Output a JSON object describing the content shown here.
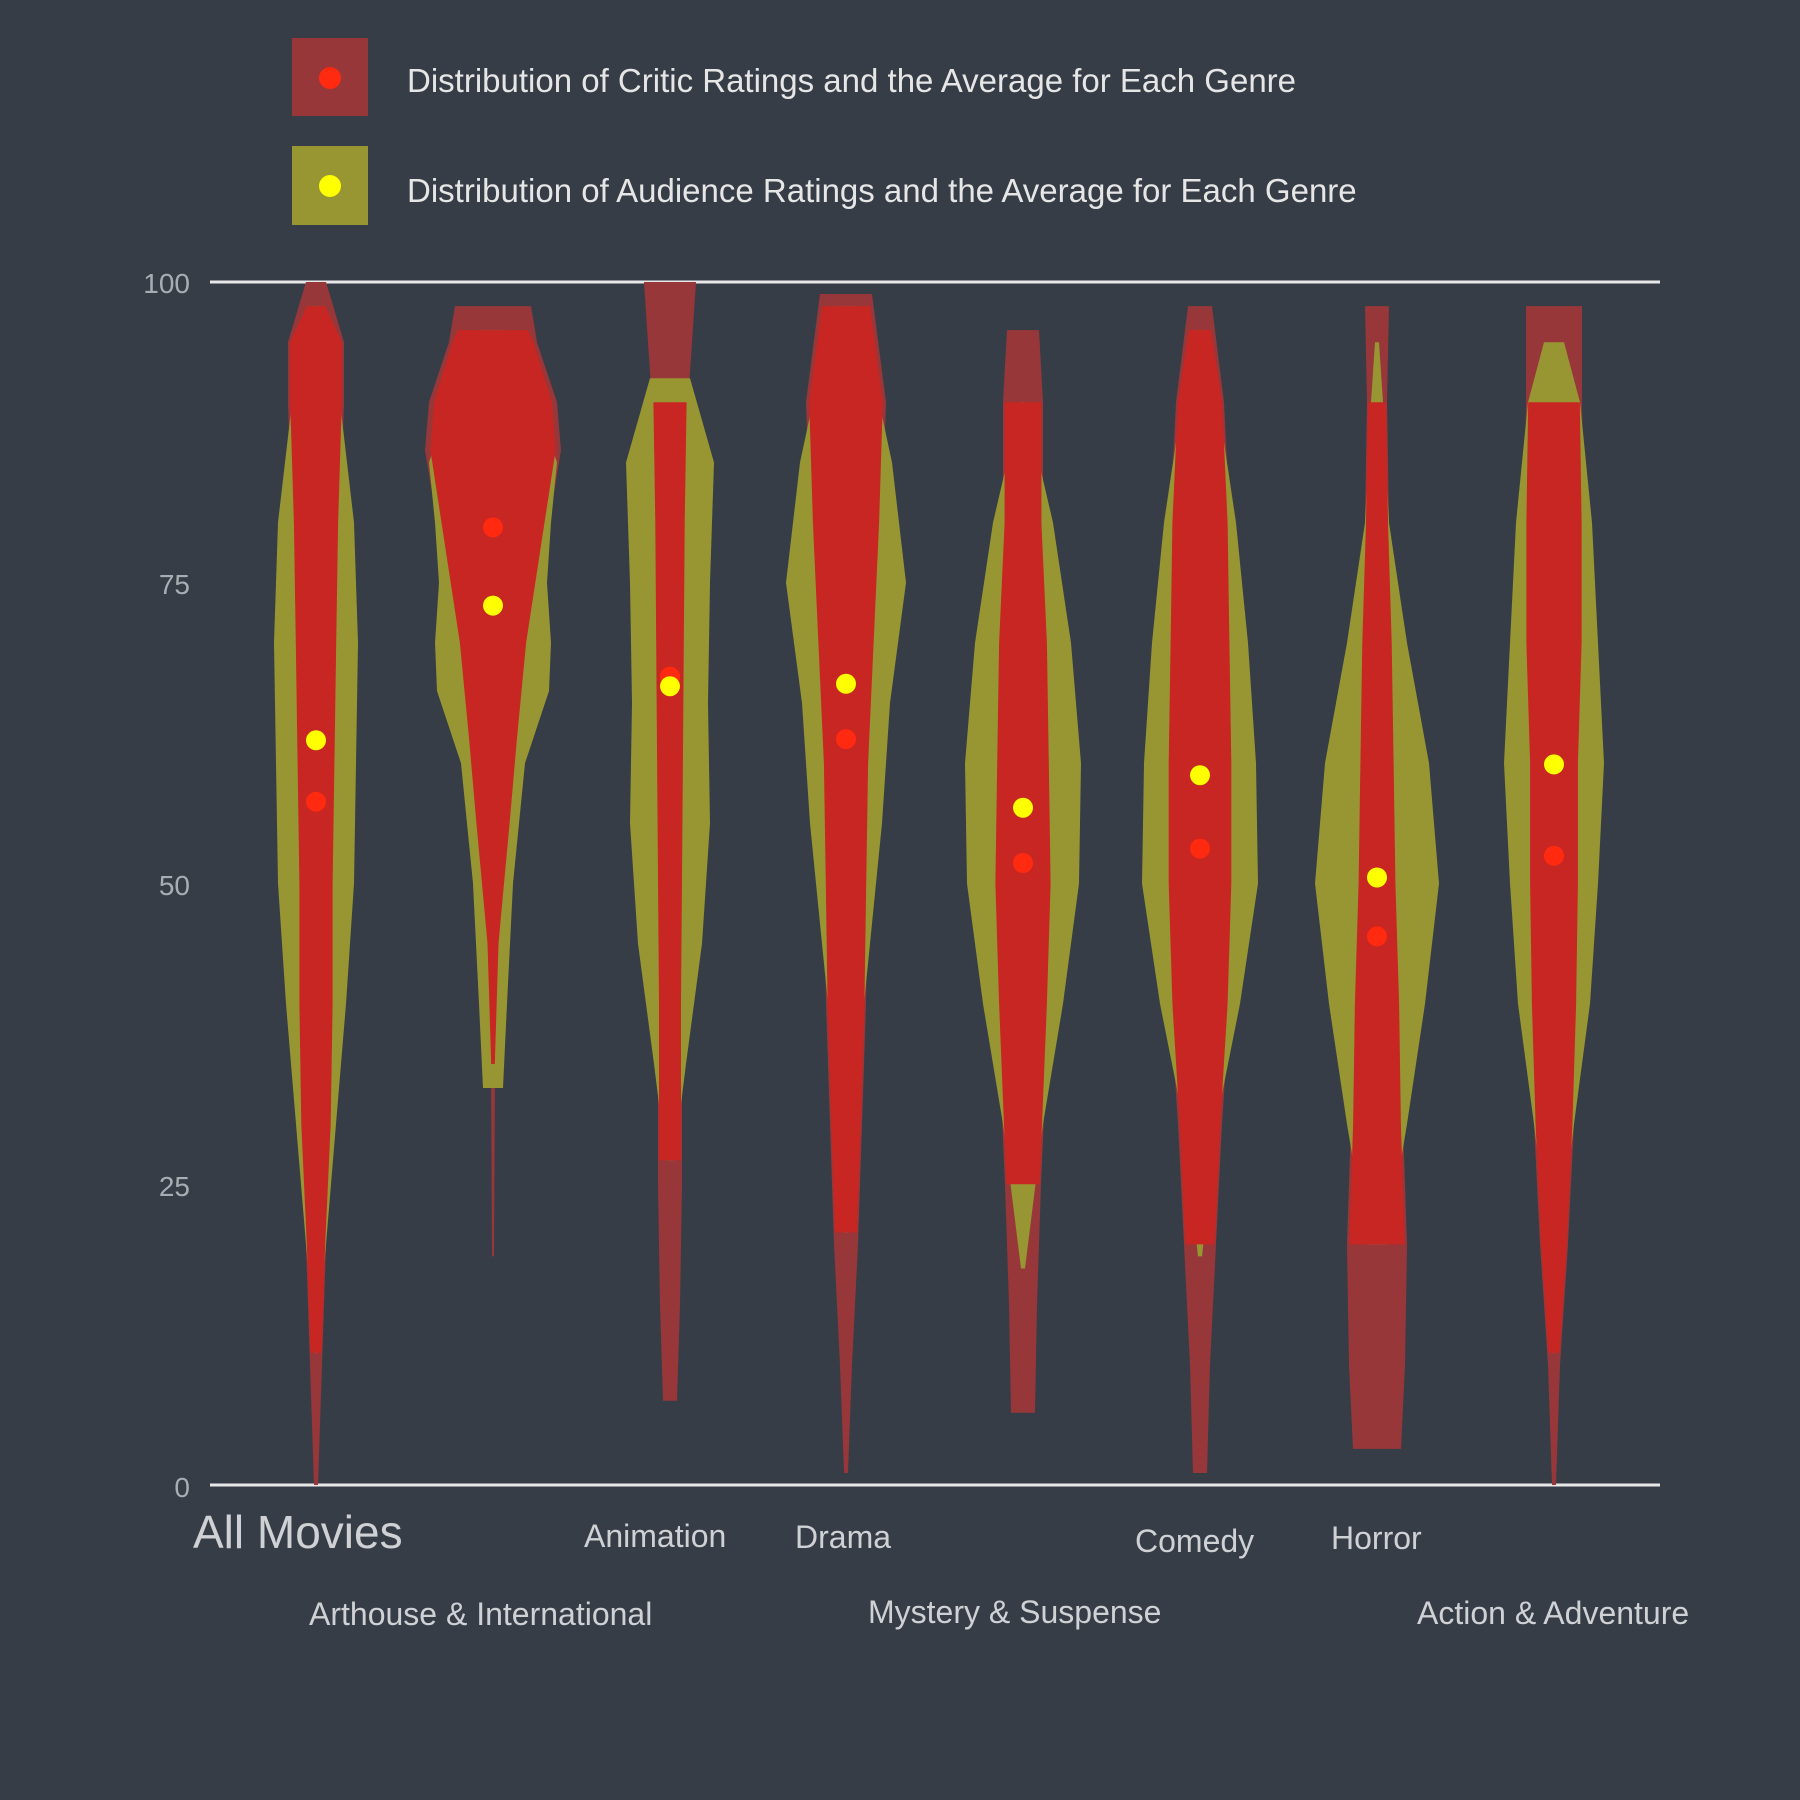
{
  "colors": {
    "background": "#363d47",
    "critic_light": "#98373a",
    "critic_core": "#c72622",
    "critic_mean": "#ff2a10",
    "audience_fill": "#979633",
    "audience_mean": "#ffff00",
    "axis_line": "#e8e8e8"
  },
  "chart_data": {
    "type": "violin",
    "legend": {
      "placement": "top-left",
      "entries": [
        "Distribution of Critic Ratings and the Average for Each Genre",
        "Distribution of Audience Ratings and the Average for Each Genre"
      ]
    },
    "ylim": [
      0,
      100
    ],
    "yticks": [
      0,
      25,
      50,
      75,
      100
    ],
    "grid": "horizontal lines at 0 and 100 only",
    "categories": [
      "All Movies",
      "Arthouse & International",
      "Animation",
      "Drama",
      "Mystery & Suspense",
      "Comedy",
      "Horror",
      "Action & Adventure"
    ],
    "series": [
      {
        "name": "Distribution of Critic Ratings and the Average for Each Genre",
        "means": [
          56.8,
          79.6,
          67.2,
          62.0,
          51.7,
          52.9,
          45.6,
          52.3
        ],
        "ranges": [
          [
            0,
            100
          ],
          [
            19,
            98
          ],
          [
            7,
            100
          ],
          [
            1,
            99
          ],
          [
            6,
            96
          ],
          [
            1,
            98
          ],
          [
            3,
            98
          ],
          [
            0,
            98
          ]
        ]
      },
      {
        "name": "Distribution of Audience Ratings and the Average for Each Genre",
        "means": [
          61.9,
          73.1,
          66.4,
          66.6,
          56.3,
          59.0,
          50.5,
          59.9
        ],
        "ranges": [
          [
            11,
            98
          ],
          [
            33,
            96
          ],
          [
            27,
            92
          ],
          [
            21,
            98
          ],
          [
            18,
            90
          ],
          [
            19,
            96
          ],
          [
            20,
            95
          ],
          [
            11,
            95
          ]
        ]
      }
    ],
    "violins": [
      {
        "critic": [
          [
            0,
            2
          ],
          [
            10,
            6
          ],
          [
            20,
            10
          ],
          [
            30,
            16
          ],
          [
            40,
            18
          ],
          [
            50,
            18
          ],
          [
            60,
            20
          ],
          [
            70,
            22
          ],
          [
            80,
            24
          ],
          [
            90,
            28
          ],
          [
            95,
            28
          ],
          [
            100,
            10
          ]
        ],
        "audience": [
          [
            11,
            1
          ],
          [
            20,
            10
          ],
          [
            30,
            20
          ],
          [
            40,
            30
          ],
          [
            50,
            38
          ],
          [
            60,
            40
          ],
          [
            70,
            42
          ],
          [
            80,
            38
          ],
          [
            90,
            24
          ],
          [
            98,
            4
          ]
        ]
      },
      {
        "critic": [
          [
            19,
            1
          ],
          [
            35,
            2
          ],
          [
            45,
            6
          ],
          [
            50,
            12
          ],
          [
            55,
            18
          ],
          [
            62,
            26
          ],
          [
            70,
            36
          ],
          [
            80,
            56
          ],
          [
            86,
            68
          ],
          [
            90,
            64
          ],
          [
            95,
            44
          ],
          [
            98,
            38
          ]
        ],
        "audience": [
          [
            33,
            10
          ],
          [
            40,
            14
          ],
          [
            50,
            20
          ],
          [
            60,
            32
          ],
          [
            66,
            56
          ],
          [
            70,
            58
          ],
          [
            75,
            54
          ],
          [
            80,
            58
          ],
          [
            85,
            64
          ],
          [
            90,
            44
          ],
          [
            96,
            12
          ]
        ]
      },
      {
        "critic": [
          [
            7,
            7
          ],
          [
            15,
            10
          ],
          [
            25,
            12
          ],
          [
            40,
            12
          ],
          [
            60,
            14
          ],
          [
            80,
            16
          ],
          [
            90,
            18
          ],
          [
            95,
            22
          ],
          [
            100,
            26
          ]
        ],
        "audience": [
          [
            27,
            4
          ],
          [
            35,
            16
          ],
          [
            45,
            32
          ],
          [
            55,
            40
          ],
          [
            65,
            38
          ],
          [
            75,
            40
          ],
          [
            85,
            44
          ],
          [
            92,
            20
          ]
        ]
      },
      {
        "critic": [
          [
            1,
            2
          ],
          [
            10,
            6
          ],
          [
            20,
            12
          ],
          [
            30,
            16
          ],
          [
            40,
            20
          ],
          [
            50,
            22
          ],
          [
            60,
            24
          ],
          [
            70,
            30
          ],
          [
            80,
            36
          ],
          [
            90,
            40
          ],
          [
            99,
            26
          ]
        ],
        "audience": [
          [
            21,
            2
          ],
          [
            30,
            8
          ],
          [
            40,
            18
          ],
          [
            55,
            36
          ],
          [
            65,
            44
          ],
          [
            75,
            60
          ],
          [
            85,
            46
          ],
          [
            92,
            28
          ],
          [
            98,
            10
          ]
        ]
      },
      {
        "critic": [
          [
            6,
            12
          ],
          [
            15,
            14
          ],
          [
            25,
            18
          ],
          [
            40,
            26
          ],
          [
            50,
            30
          ],
          [
            60,
            28
          ],
          [
            70,
            26
          ],
          [
            80,
            20
          ],
          [
            90,
            20
          ],
          [
            96,
            16
          ]
        ],
        "audience": [
          [
            18,
            2
          ],
          [
            30,
            20
          ],
          [
            40,
            40
          ],
          [
            50,
            56
          ],
          [
            60,
            58
          ],
          [
            70,
            48
          ],
          [
            80,
            30
          ],
          [
            90,
            2
          ]
        ]
      },
      {
        "critic": [
          [
            1,
            7
          ],
          [
            10,
            10
          ],
          [
            20,
            16
          ],
          [
            30,
            22
          ],
          [
            40,
            30
          ],
          [
            50,
            34
          ],
          [
            60,
            34
          ],
          [
            70,
            32
          ],
          [
            80,
            30
          ],
          [
            90,
            24
          ],
          [
            98,
            12
          ]
        ],
        "audience": [
          [
            19,
            2
          ],
          [
            30,
            16
          ],
          [
            40,
            40
          ],
          [
            50,
            58
          ],
          [
            60,
            56
          ],
          [
            70,
            48
          ],
          [
            80,
            36
          ],
          [
            90,
            18
          ],
          [
            96,
            4
          ]
        ]
      },
      {
        "critic": [
          [
            3,
            24
          ],
          [
            10,
            28
          ],
          [
            20,
            30
          ],
          [
            30,
            26
          ],
          [
            40,
            24
          ],
          [
            50,
            20
          ],
          [
            60,
            18
          ],
          [
            70,
            16
          ],
          [
            80,
            12
          ],
          [
            90,
            10
          ],
          [
            98,
            12
          ]
        ],
        "audience": [
          [
            20,
            10
          ],
          [
            30,
            30
          ],
          [
            40,
            48
          ],
          [
            50,
            62
          ],
          [
            60,
            52
          ],
          [
            70,
            30
          ],
          [
            80,
            12
          ],
          [
            90,
            6
          ],
          [
            95,
            2
          ]
        ]
      },
      {
        "critic": [
          [
            0,
            2
          ],
          [
            10,
            6
          ],
          [
            20,
            14
          ],
          [
            30,
            20
          ],
          [
            40,
            24
          ],
          [
            50,
            26
          ],
          [
            60,
            26
          ],
          [
            70,
            30
          ],
          [
            80,
            30
          ],
          [
            90,
            28
          ],
          [
            98,
            28
          ]
        ],
        "audience": [
          [
            11,
            1
          ],
          [
            20,
            6
          ],
          [
            30,
            20
          ],
          [
            40,
            36
          ],
          [
            50,
            44
          ],
          [
            60,
            50
          ],
          [
            70,
            44
          ],
          [
            80,
            38
          ],
          [
            90,
            26
          ],
          [
            95,
            10
          ]
        ]
      }
    ]
  }
}
